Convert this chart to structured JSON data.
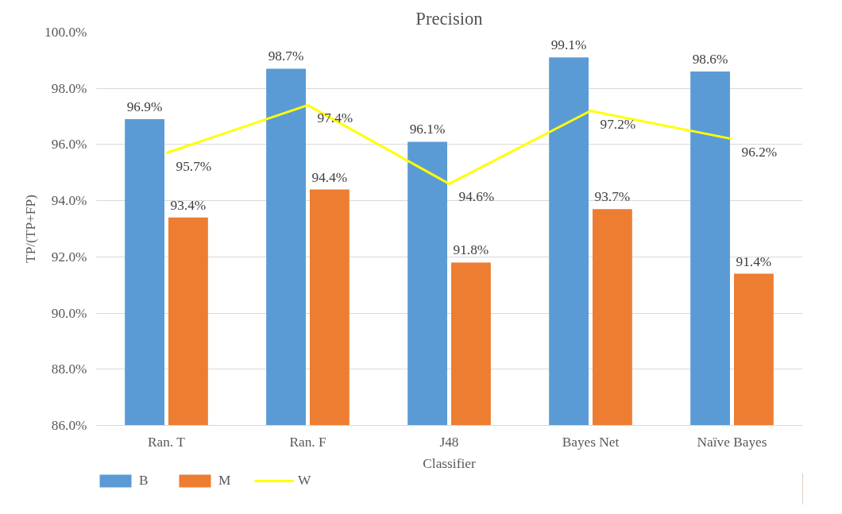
{
  "chart_data": {
    "type": "bar",
    "title": "Precision",
    "xlabel": "Classifier",
    "ylabel": "TP/(TP+FP)",
    "categories": [
      "Ran. T",
      "Ran. F",
      "J48",
      "Bayes Net",
      "Naïve Bayes"
    ],
    "series": [
      {
        "name": "B",
        "color": "#5b9bd5",
        "values": [
          96.9,
          98.7,
          96.1,
          99.1,
          98.6
        ],
        "value_labels": [
          "96.9%",
          "98.7%",
          "96.1%",
          "99.1%",
          "98.6%"
        ]
      },
      {
        "name": "M",
        "color": "#ed7d31",
        "values": [
          93.4,
          94.4,
          91.8,
          93.7,
          91.4
        ],
        "value_labels": [
          "93.4%",
          "94.4%",
          "91.8%",
          "93.7%",
          "91.4%"
        ]
      },
      {
        "name": "W",
        "type": "line",
        "color": "#ffff00",
        "values": [
          95.7,
          97.4,
          94.6,
          97.2,
          96.2
        ],
        "value_labels": [
          "95.7%",
          "97.4%",
          "94.6%",
          "97.2%",
          "96.2%"
        ]
      }
    ],
    "ylim": [
      86,
      100
    ],
    "yticks": [
      {
        "value": 86,
        "label": "86.0%"
      },
      {
        "value": 88,
        "label": "88.0%"
      },
      {
        "value": 90,
        "label": "90.0%"
      },
      {
        "value": 92,
        "label": "92.0%"
      },
      {
        "value": 94,
        "label": "94.0%"
      },
      {
        "value": 96,
        "label": "96.0%"
      },
      {
        "value": 98,
        "label": "98.0%"
      },
      {
        "value": 100,
        "label": "100.0%"
      }
    ],
    "grid": "y",
    "legend": "bottom left"
  }
}
